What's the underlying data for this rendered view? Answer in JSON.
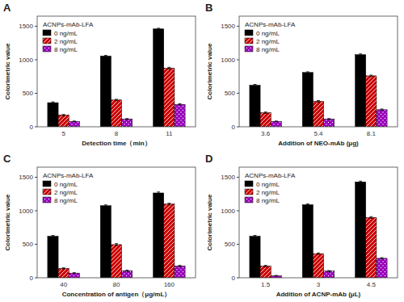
{
  "chart_data": [
    {
      "type": "bar",
      "title": "A",
      "subtitle": "ACNPs-mAb-LFA",
      "xlabel": "Detection time（min）",
      "ylabel": "Colorimetric value",
      "categories": [
        "5",
        "8",
        "11"
      ],
      "series": [
        {
          "name": "0 ng/mL",
          "color": "#000000",
          "values": [
            360,
            1055,
            1460
          ],
          "errors": [
            12,
            10,
            10
          ]
        },
        {
          "name": "2 ng/mL",
          "color": "#cc0000",
          "values": [
            175,
            400,
            875
          ],
          "errors": [
            8,
            10,
            12
          ]
        },
        {
          "name": "8 ng/mL",
          "color": "#9900bb",
          "values": [
            80,
            115,
            335
          ],
          "errors": [
            6,
            8,
            10
          ]
        }
      ],
      "ylim": [
        0,
        1650
      ],
      "yticks": [
        0,
        500,
        1000,
        1500
      ],
      "grid": false,
      "legend": "upper left"
    },
    {
      "type": "bar",
      "title": "B",
      "subtitle": "ACNPs-mAb-LFA",
      "xlabel": "Addition of  NEO-mAb (μg)",
      "ylabel": "Colorimetric value",
      "categories": [
        "3.6",
        "5.4",
        "8.1"
      ],
      "series": [
        {
          "name": "0 ng/mL",
          "color": "#000000",
          "values": [
            620,
            810,
            1075
          ],
          "errors": [
            12,
            10,
            12
          ]
        },
        {
          "name": "2 ng/mL",
          "color": "#cc0000",
          "values": [
            210,
            380,
            760
          ],
          "errors": [
            10,
            12,
            10
          ]
        },
        {
          "name": "8 ng/mL",
          "color": "#9900bb",
          "values": [
            80,
            115,
            255
          ],
          "errors": [
            6,
            8,
            10
          ]
        }
      ],
      "ylim": [
        0,
        1650
      ],
      "yticks": [
        0,
        500,
        1000,
        1500
      ],
      "grid": false,
      "legend": "upper left"
    },
    {
      "type": "bar",
      "title": "C",
      "subtitle": "ACNPs-mAb-LFA",
      "xlabel": "Concentration of antigen（μg/mL）",
      "ylabel": "Colorimetric value",
      "categories": [
        "40",
        "80",
        "160"
      ],
      "series": [
        {
          "name": "0 ng/mL",
          "color": "#000000",
          "values": [
            620,
            1075,
            1265
          ],
          "errors": [
            12,
            12,
            15
          ]
        },
        {
          "name": "2 ng/mL",
          "color": "#cc0000",
          "values": [
            140,
            495,
            1100
          ],
          "errors": [
            8,
            14,
            12
          ]
        },
        {
          "name": "8 ng/mL",
          "color": "#9900bb",
          "values": [
            70,
            105,
            175
          ],
          "errors": [
            6,
            8,
            10
          ]
        }
      ],
      "ylim": [
        0,
        1650
      ],
      "yticks": [
        0,
        500,
        1000,
        1500
      ],
      "grid": false,
      "legend": "upper left"
    },
    {
      "type": "bar",
      "title": "D",
      "subtitle": "ACNPs-mAb-LFA",
      "xlabel": "Addition of  ACNP-mAb (μL)",
      "ylabel": "Colorimetric value",
      "categories": [
        "1.5",
        "3",
        "4.5"
      ],
      "series": [
        {
          "name": "0 ng/mL",
          "color": "#000000",
          "values": [
            620,
            1090,
            1430
          ],
          "errors": [
            12,
            12,
            12
          ]
        },
        {
          "name": "2 ng/mL",
          "color": "#cc0000",
          "values": [
            175,
            360,
            900
          ],
          "errors": [
            10,
            10,
            12
          ]
        },
        {
          "name": "8 ng/mL",
          "color": "#9900bb",
          "values": [
            30,
            100,
            290
          ],
          "errors": [
            5,
            8,
            10
          ]
        }
      ],
      "ylim": [
        0,
        1650
      ],
      "yticks": [
        0,
        500,
        1000,
        1500
      ],
      "grid": false,
      "legend": "upper left"
    }
  ]
}
